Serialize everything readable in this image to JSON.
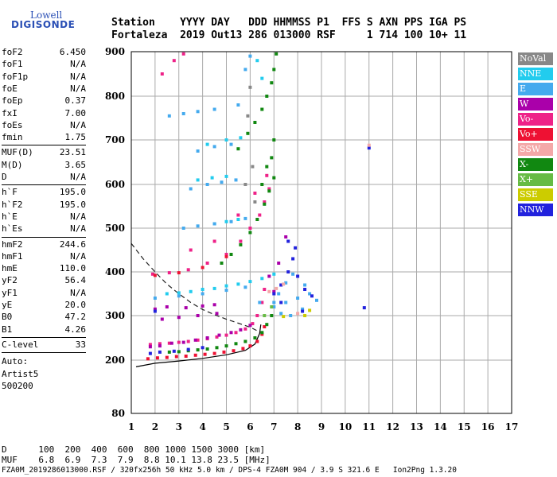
{
  "logo": {
    "top": "Lowell",
    "main": "DIGISONDE"
  },
  "header": {
    "line1": "Station    YYYY DAY   DDD HHMMSS P1  FFS S AXN PPS IGA PS",
    "line2": "Fortaleza  2019 Out13 286 013000 RSF     1 714 100 10+ 11"
  },
  "params": {
    "group1": [
      {
        "k": "foF2",
        "v": "6.450"
      },
      {
        "k": "foF1",
        "v": "N/A"
      },
      {
        "k": "foF1p",
        "v": "N/A"
      },
      {
        "k": "foE",
        "v": "N/A"
      },
      {
        "k": "foEp",
        "v": "0.37"
      },
      {
        "k": "fxI",
        "v": "7.00"
      },
      {
        "k": "foEs",
        "v": "N/A"
      },
      {
        "k": "fmin",
        "v": "1.75"
      }
    ],
    "group2": [
      {
        "k": "MUF(D)",
        "v": "23.51"
      },
      {
        "k": "M(D)",
        "v": "3.65"
      },
      {
        "k": "D",
        "v": "N/A"
      }
    ],
    "group3": [
      {
        "k": "h`F",
        "v": "195.0"
      },
      {
        "k": "h`F2",
        "v": "195.0"
      },
      {
        "k": "h`E",
        "v": "N/A"
      },
      {
        "k": "h`Es",
        "v": "N/A"
      }
    ],
    "group4": [
      {
        "k": "hmF2",
        "v": "244.6"
      },
      {
        "k": "hmF1",
        "v": "N/A"
      },
      {
        "k": "hmE",
        "v": "110.0"
      },
      {
        "k": "yF2",
        "v": "56.4"
      },
      {
        "k": "yF1",
        "v": "N/A"
      },
      {
        "k": "yE",
        "v": "20.0"
      },
      {
        "k": "B0",
        "v": "47.2"
      },
      {
        "k": "B1",
        "v": "4.26"
      }
    ],
    "clevel": {
      "k": "C-level",
      "v": "33"
    },
    "auto_label": "Auto:",
    "auto_name": "Artist5",
    "auto_code": "500200"
  },
  "footer": {
    "line1": "D      100  200  400  600  800 1000 1500 3000 [km]",
    "line2": "MUF    6.8  6.9  7.3  7.9  8.8 10.1 13.8 23.5 [MHz]",
    "line3": "FZA0M_2019286013000.RSF / 320fx256h 50 kHz 5.0 km / DPS-4 FZA0M 904 / 3.9 S 321.6 E   Ion2Png 1.3.20"
  },
  "legend": [
    {
      "label": "NoVal",
      "color": "#888888"
    },
    {
      "label": "NNE",
      "color": "#22ccee"
    },
    {
      "label": "E",
      "color": "#44aaee"
    },
    {
      "label": "W",
      "color": "#aa00aa"
    },
    {
      "label": "Vo-",
      "color": "#ee2288"
    },
    {
      "label": "Vo+",
      "color": "#ee1133"
    },
    {
      "label": "SSW",
      "color": "#f4a8a8"
    },
    {
      "label": "X-",
      "color": "#118811"
    },
    {
      "label": "X+",
      "color": "#66bb44"
    },
    {
      "label": "SSE",
      "color": "#cccc00"
    },
    {
      "label": "NNW",
      "color": "#2222dd"
    }
  ],
  "chart_data": {
    "type": "scatter",
    "title": "",
    "xlabel": "",
    "ylabel": "",
    "xlim": [
      1,
      17
    ],
    "ylim": [
      80,
      900
    ],
    "x_ticks": [
      1,
      2,
      3,
      4,
      5,
      6,
      7,
      8,
      9,
      10,
      11,
      12,
      13,
      14,
      15,
      16,
      17
    ],
    "y_ticks": [
      80,
      200,
      300,
      400,
      500,
      600,
      700,
      800,
      900
    ],
    "grid": true,
    "series": [
      {
        "name": "Vo-",
        "color": "#ee2288",
        "points": [
          [
            1.8,
            235
          ],
          [
            2.2,
            237
          ],
          [
            2.6,
            238
          ],
          [
            3.0,
            240
          ],
          [
            3.4,
            242
          ],
          [
            3.8,
            245
          ],
          [
            4.2,
            248
          ],
          [
            4.6,
            252
          ],
          [
            5.0,
            256
          ],
          [
            5.4,
            262
          ],
          [
            5.8,
            270
          ],
          [
            6.1,
            282
          ],
          [
            6.3,
            300
          ],
          [
            6.5,
            330
          ],
          [
            6.6,
            360
          ],
          [
            1.9,
            395
          ],
          [
            2.6,
            398
          ],
          [
            3.4,
            405
          ],
          [
            4.2,
            420
          ],
          [
            5.0,
            440
          ],
          [
            5.6,
            470
          ],
          [
            6.0,
            500
          ],
          [
            6.4,
            530
          ],
          [
            6.6,
            560
          ],
          [
            6.8,
            590
          ],
          [
            3.5,
            450
          ],
          [
            4.5,
            470
          ],
          [
            5.5,
            530
          ],
          [
            6.2,
            580
          ],
          [
            6.7,
            620
          ],
          [
            2.3,
            850
          ],
          [
            2.8,
            880
          ],
          [
            3.2,
            895
          ]
        ]
      },
      {
        "name": "Vo+",
        "color": "#ee1133",
        "points": [
          [
            1.7,
            203
          ],
          [
            2.1,
            205
          ],
          [
            2.5,
            206
          ],
          [
            2.9,
            208
          ],
          [
            3.3,
            209
          ],
          [
            3.7,
            211
          ],
          [
            4.1,
            213
          ],
          [
            4.5,
            215
          ],
          [
            4.9,
            218
          ],
          [
            5.3,
            221
          ],
          [
            5.7,
            226
          ],
          [
            6.0,
            232
          ],
          [
            6.3,
            242
          ],
          [
            6.5,
            258
          ],
          [
            6.6,
            275
          ],
          [
            2.0,
            392
          ],
          [
            3.0,
            398
          ],
          [
            4.0,
            410
          ],
          [
            5.0,
            435
          ]
        ]
      },
      {
        "name": "W",
        "color": "#aa00aa",
        "points": [
          [
            1.8,
            230
          ],
          [
            2.2,
            232
          ],
          [
            2.7,
            238
          ],
          [
            3.2,
            240
          ],
          [
            3.7,
            245
          ],
          [
            4.2,
            250
          ],
          [
            4.7,
            256
          ],
          [
            5.2,
            262
          ],
          [
            5.6,
            268
          ],
          [
            6.0,
            278
          ],
          [
            2.3,
            292
          ],
          [
            3.0,
            296
          ],
          [
            3.8,
            300
          ],
          [
            4.6,
            305
          ],
          [
            2.0,
            315
          ],
          [
            2.5,
            320
          ],
          [
            3.3,
            318
          ],
          [
            4.0,
            322
          ],
          [
            4.5,
            325
          ],
          [
            6.8,
            390
          ],
          [
            7.2,
            420
          ],
          [
            7.5,
            480
          ],
          [
            7.0,
            355
          ]
        ]
      },
      {
        "name": "X-",
        "color": "#118811",
        "points": [
          [
            2.6,
            218
          ],
          [
            3.0,
            219
          ],
          [
            3.4,
            221
          ],
          [
            3.8,
            223
          ],
          [
            4.2,
            225
          ],
          [
            4.6,
            228
          ],
          [
            5.0,
            232
          ],
          [
            5.4,
            237
          ],
          [
            5.8,
            242
          ],
          [
            6.2,
            250
          ],
          [
            6.5,
            262
          ],
          [
            6.7,
            280
          ],
          [
            6.9,
            300
          ],
          [
            4.8,
            420
          ],
          [
            5.2,
            440
          ],
          [
            5.6,
            462
          ],
          [
            6.0,
            490
          ],
          [
            6.3,
            520
          ],
          [
            6.6,
            555
          ],
          [
            6.8,
            585
          ],
          [
            7.0,
            615
          ],
          [
            6.5,
            600
          ],
          [
            6.7,
            640
          ],
          [
            6.9,
            660
          ],
          [
            7.0,
            700
          ],
          [
            5.5,
            680
          ],
          [
            5.9,
            715
          ],
          [
            6.2,
            740
          ],
          [
            6.5,
            770
          ],
          [
            6.7,
            800
          ],
          [
            6.9,
            830
          ],
          [
            7.0,
            860
          ],
          [
            7.1,
            895
          ]
        ]
      },
      {
        "name": "NNE",
        "color": "#22ccee",
        "points": [
          [
            2.5,
            350
          ],
          [
            3.0,
            352
          ],
          [
            3.5,
            355
          ],
          [
            4.0,
            360
          ],
          [
            4.5,
            362
          ],
          [
            5.0,
            368
          ],
          [
            5.5,
            372
          ],
          [
            6.0,
            378
          ],
          [
            6.5,
            385
          ],
          [
            7.0,
            395
          ],
          [
            4.5,
            510
          ],
          [
            5.0,
            515
          ],
          [
            5.5,
            520
          ],
          [
            3.8,
            610
          ],
          [
            4.4,
            615
          ],
          [
            5.0,
            618
          ],
          [
            4.2,
            690
          ],
          [
            5.0,
            700
          ],
          [
            5.6,
            705
          ],
          [
            6.5,
            840
          ],
          [
            6.3,
            880
          ]
        ]
      },
      {
        "name": "E",
        "color": "#44aaee",
        "points": [
          [
            2.0,
            340
          ],
          [
            3.0,
            345
          ],
          [
            4.0,
            350
          ],
          [
            5.0,
            358
          ],
          [
            5.8,
            365
          ],
          [
            6.4,
            330
          ],
          [
            7.0,
            320
          ],
          [
            7.5,
            330
          ],
          [
            8.0,
            340
          ],
          [
            8.5,
            350
          ],
          [
            8.8,
            335
          ],
          [
            7.3,
            305
          ],
          [
            7.7,
            300
          ],
          [
            8.2,
            315
          ],
          [
            3.2,
            500
          ],
          [
            3.8,
            505
          ],
          [
            4.5,
            510
          ],
          [
            5.2,
            515
          ],
          [
            5.8,
            522
          ],
          [
            3.5,
            590
          ],
          [
            4.2,
            600
          ],
          [
            4.8,
            605
          ],
          [
            5.4,
            610
          ],
          [
            3.8,
            675
          ],
          [
            4.5,
            685
          ],
          [
            5.2,
            690
          ],
          [
            2.6,
            755
          ],
          [
            3.2,
            760
          ],
          [
            3.8,
            765
          ],
          [
            4.5,
            770
          ],
          [
            5.5,
            780
          ],
          [
            6.0,
            890
          ],
          [
            5.8,
            860
          ],
          [
            7.2,
            350
          ],
          [
            7.5,
            375
          ],
          [
            7.8,
            395
          ],
          [
            7.0,
            330
          ],
          [
            8.3,
            370
          ]
        ]
      },
      {
        "name": "NNW",
        "color": "#2222dd",
        "points": [
          [
            1.8,
            215
          ],
          [
            2.2,
            218
          ],
          [
            2.8,
            220
          ],
          [
            3.4,
            224
          ],
          [
            4.0,
            228
          ],
          [
            7.0,
            350
          ],
          [
            7.3,
            370
          ],
          [
            7.6,
            400
          ],
          [
            7.8,
            430
          ],
          [
            8.0,
            390
          ],
          [
            8.3,
            360
          ],
          [
            8.6,
            345
          ],
          [
            7.6,
            470
          ],
          [
            7.3,
            330
          ],
          [
            8.2,
            310
          ],
          [
            7.9,
            455
          ],
          [
            10.8,
            318
          ],
          [
            11.0,
            682
          ],
          [
            2.0,
            310
          ]
        ]
      },
      {
        "name": "SSW",
        "color": "#f4a8a8",
        "points": [
          [
            6.8,
            355
          ],
          [
            7.1,
            362
          ],
          [
            7.4,
            372
          ],
          [
            8.0,
            305
          ],
          [
            11.0,
            688
          ]
        ]
      },
      {
        "name": "SSE",
        "color": "#cccc00",
        "points": [
          [
            8.3,
            300
          ],
          [
            8.5,
            312
          ],
          [
            7.4,
            298
          ]
        ]
      },
      {
        "name": "X+",
        "color": "#66bb44",
        "points": [
          [
            6.6,
            300
          ],
          [
            6.9,
            320
          ]
        ]
      },
      {
        "name": "NoVal",
        "color": "#888888",
        "points": [
          [
            5.9,
            755
          ],
          [
            6.0,
            820
          ],
          [
            6.1,
            640
          ],
          [
            5.8,
            600
          ],
          [
            6.2,
            560
          ]
        ]
      }
    ],
    "profile_curve": [
      [
        1.2,
        185
      ],
      [
        2.0,
        193
      ],
      [
        3.0,
        198
      ],
      [
        4.0,
        204
      ],
      [
        5.0,
        212
      ],
      [
        5.8,
        222
      ],
      [
        6.2,
        236
      ],
      [
        6.4,
        260
      ],
      [
        6.45,
        280
      ]
    ],
    "dashed_curve": [
      [
        1.0,
        465
      ],
      [
        1.5,
        430
      ],
      [
        2.0,
        400
      ],
      [
        2.5,
        372
      ],
      [
        3.0,
        350
      ],
      [
        3.5,
        330
      ],
      [
        4.0,
        314
      ],
      [
        4.5,
        302
      ],
      [
        5.0,
        292
      ],
      [
        5.5,
        283
      ],
      [
        6.0,
        274
      ],
      [
        6.45,
        262
      ]
    ]
  }
}
